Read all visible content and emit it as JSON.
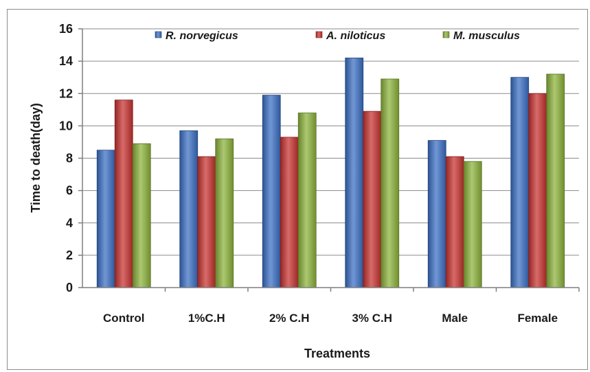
{
  "chart_data": {
    "type": "bar",
    "title": "",
    "xlabel": "Treatments",
    "ylabel": "Time to death(day)",
    "ylim": [
      0,
      16
    ],
    "yticks": [
      0,
      2,
      4,
      6,
      8,
      10,
      12,
      14,
      16
    ],
    "grid": true,
    "legend_position": "top",
    "categories": [
      "Control",
      "1%C.H",
      "2% C.H",
      "3% C.H",
      "Male",
      "Female"
    ],
    "series": [
      {
        "name": "R. norvegicus",
        "color": "#3a6fc4",
        "values": [
          8.5,
          9.7,
          11.9,
          14.2,
          9.1,
          13.0
        ]
      },
      {
        "name": "A. niloticus",
        "color": "#c8322f",
        "values": [
          11.6,
          8.1,
          9.3,
          10.9,
          8.1,
          12.0
        ]
      },
      {
        "name": "M. musculus",
        "color": "#8cb33a",
        "values": [
          8.9,
          9.2,
          10.8,
          12.9,
          7.8,
          13.2
        ]
      }
    ]
  }
}
